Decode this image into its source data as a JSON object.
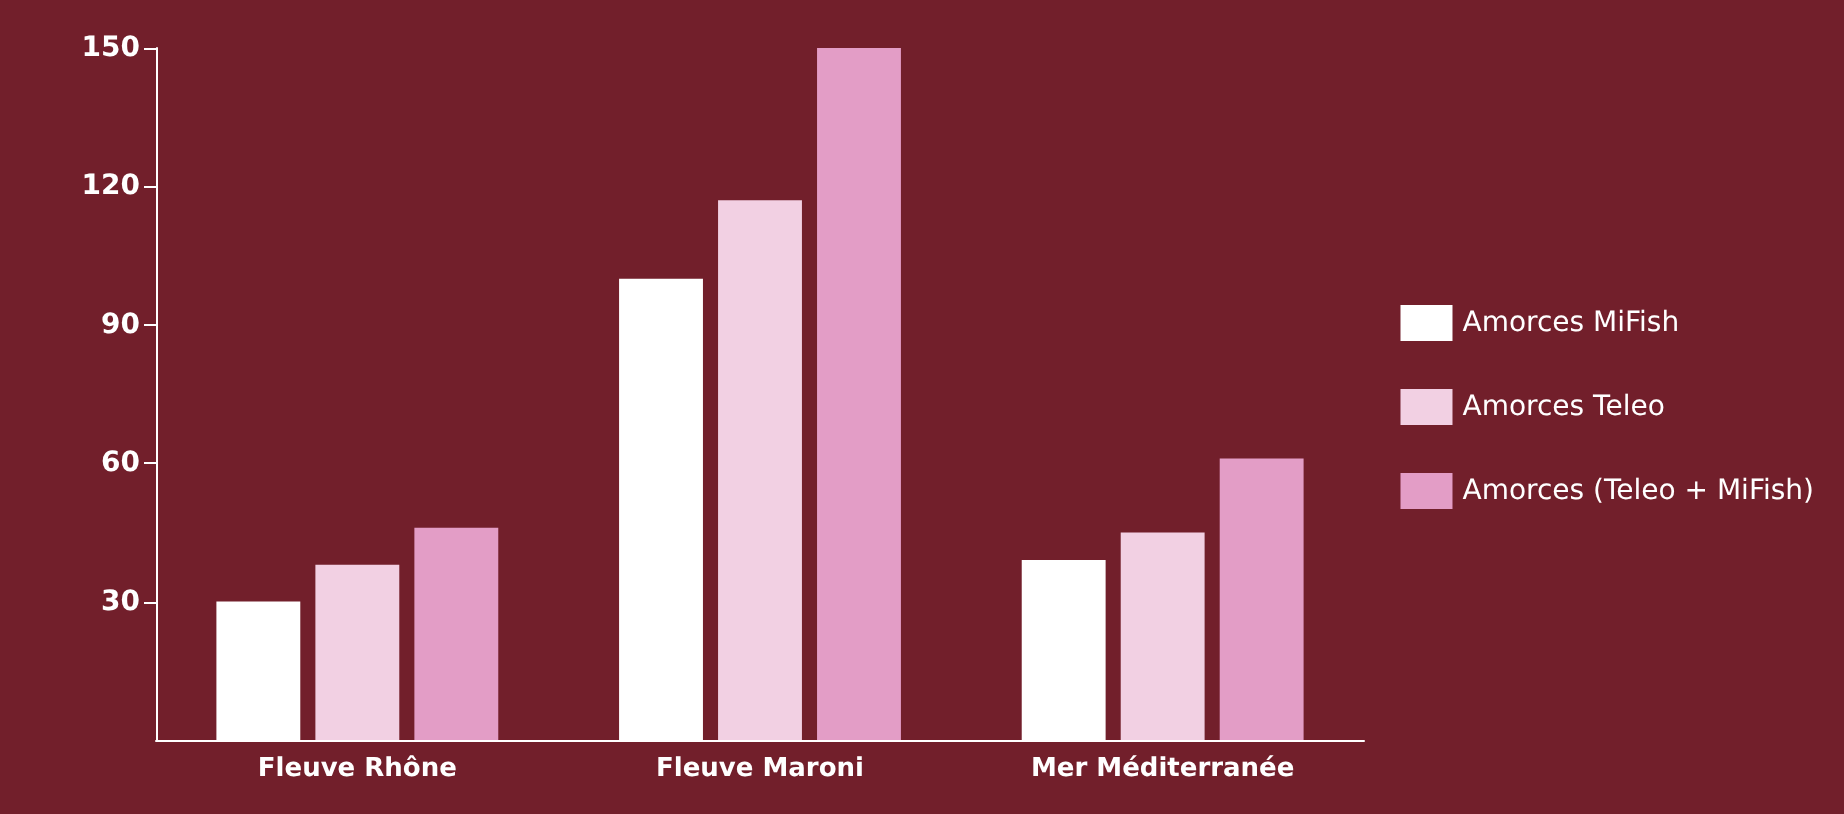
{
  "chart_data": {
    "type": "bar",
    "categories": [
      "Fleuve Rhône",
      "Fleuve Maroni",
      "Mer Méditerranée"
    ],
    "series": [
      {
        "name": "Amorces MiFish",
        "color": "#ffffff",
        "values": [
          30,
          100,
          39
        ]
      },
      {
        "name": "Amorces Teleo",
        "color": "#f2d0e3",
        "values": [
          38,
          117,
          45
        ]
      },
      {
        "name": "Amorces (Teleo + MiFish)",
        "color": "#e39dc6",
        "values": [
          46,
          150,
          61
        ]
      }
    ],
    "ylim": [
      0,
      150
    ],
    "yticks": [
      30,
      60,
      90,
      120,
      150
    ],
    "grid": false,
    "legend": "right"
  }
}
